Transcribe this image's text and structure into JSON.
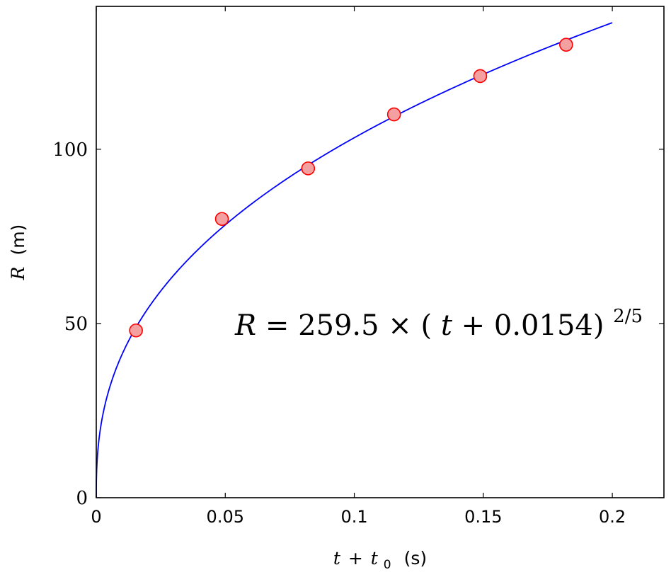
{
  "chart_data": {
    "type": "scatter",
    "title": "",
    "xlabel": {
      "var": "t",
      "op": "+",
      "var2": "t",
      "sub": "0",
      "unit": "(s)"
    },
    "ylabel": {
      "var": "R",
      "unit": "(m)"
    },
    "xlim": [
      0,
      0.22
    ],
    "ylim": [
      0,
      141
    ],
    "x_ticks": [
      {
        "value": 0,
        "label": "0"
      },
      {
        "value": 0.05,
        "label": "0.05"
      },
      {
        "value": 0.1,
        "label": "0.1"
      },
      {
        "value": 0.15,
        "label": "0.15"
      },
      {
        "value": 0.2,
        "label": "0.2"
      }
    ],
    "y_ticks": [
      {
        "value": 0,
        "label": "0"
      },
      {
        "value": 50,
        "label": "50"
      },
      {
        "value": 100,
        "label": "100"
      }
    ],
    "grid": false,
    "series": [
      {
        "kind": "points",
        "marker": "circle",
        "color": "#ff0000",
        "fill": "#f5a0a0",
        "x": [
          0.0154,
          0.0487,
          0.0821,
          0.1154,
          0.1488,
          0.1821
        ],
        "y": [
          48,
          80,
          94.5,
          110,
          121,
          130
        ]
      },
      {
        "kind": "fit",
        "color": "#0000ff",
        "coefficient": 259.5,
        "exponent": 0.4,
        "x_range": [
          0,
          0.2
        ]
      }
    ],
    "annotation": {
      "lhs": "R",
      "eq": " = 259.5 × (",
      "var": "t",
      "rest": " + 0.0154)",
      "exp": "2/5"
    }
  }
}
